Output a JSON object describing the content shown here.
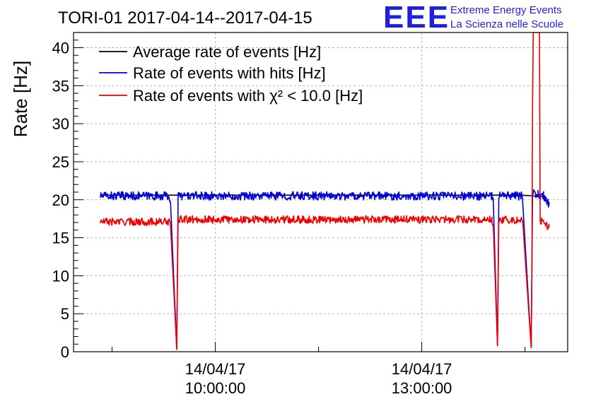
{
  "chart_data": {
    "type": "line",
    "title": "TORI-01 2017-04-14--2017-04-15",
    "ylabel": "Rate [Hz]",
    "xlabel": "",
    "ylim": [
      0,
      42
    ],
    "y_ticks": [
      0,
      5,
      10,
      15,
      20,
      25,
      30,
      35,
      40
    ],
    "x_tick_labels": [
      {
        "date": "14/04/17",
        "time": "10:00:00"
      },
      {
        "date": "14/04/17",
        "time": "13:00:00"
      }
    ],
    "grid": true,
    "legend_position": "top-left",
    "x_unit": "hour_of_day",
    "xlim": [
      7.94,
      15.12
    ],
    "x_ticks": [
      10,
      13
    ],
    "series": [
      {
        "name": "Average rate of events [Hz]",
        "color": "#000000",
        "x": [
          8.33,
          14.46,
          14.76
        ],
        "y": [
          20.6,
          20.6,
          20.4
        ]
      },
      {
        "name": "Rate of events with hits [Hz]",
        "color": "#0000dd",
        "baseline": 20.5,
        "noise": 0.55,
        "x": [
          8.33,
          9.33,
          9.35,
          9.44,
          9.46,
          14.02,
          14.04,
          14.1,
          14.12,
          14.46,
          14.47,
          14.59,
          14.61,
          14.69,
          14.77,
          14.85
        ],
        "y": [
          20.5,
          20.5,
          19.5,
          0.4,
          20.5,
          20.5,
          19.5,
          0.8,
          20.5,
          20.5,
          19.2,
          0.6,
          20.8,
          20.7,
          20.5,
          19.3
        ]
      },
      {
        "name": "Rate of events with χ² < 10.0 [Hz]",
        "color": "#ee0000",
        "baseline": 17.3,
        "noise": 0.5,
        "x": [
          8.33,
          9.33,
          9.35,
          9.44,
          9.46,
          14.02,
          14.04,
          14.1,
          14.12,
          14.46,
          14.47,
          14.59,
          14.6,
          14.61,
          14.62,
          14.64,
          14.65,
          14.67,
          14.68,
          14.71,
          14.72,
          14.74,
          14.8,
          14.85
        ],
        "y": [
          17.1,
          17.1,
          16.5,
          0.3,
          17.4,
          17.4,
          16.3,
          0.8,
          17.4,
          17.3,
          16.8,
          0.5,
          11,
          32,
          42,
          42,
          42,
          42,
          42,
          42,
          17,
          17.2,
          16.8,
          16.3
        ]
      }
    ]
  },
  "logo": {
    "text": "EEE",
    "line1": "Extreme Energy Events",
    "line2": "La Scienza nelle Scuole"
  }
}
